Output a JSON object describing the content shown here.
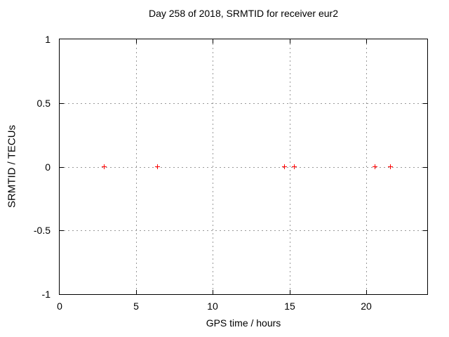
{
  "chart_data": {
    "type": "scatter",
    "title": "Day 258 of 2018, SRMTID for receiver eur2",
    "xlabel": "GPS time / hours",
    "ylabel": "SRMTID / TECUs",
    "xlim": [
      0,
      24
    ],
    "ylim": [
      -1,
      1
    ],
    "xticks": [
      0,
      5,
      10,
      15,
      20
    ],
    "xtick_labels": [
      "0",
      "5",
      "10",
      "15",
      "20"
    ],
    "yticks": [
      1,
      0.5,
      0,
      -0.5,
      -1
    ],
    "ytick_labels": [
      "1",
      "0.5",
      "0",
      "-0.5",
      "-1"
    ],
    "grid": true,
    "grid_x": [
      5,
      10,
      15,
      20
    ],
    "grid_y": [
      0.5,
      0,
      -0.5
    ],
    "legend": "none",
    "series": [
      {
        "name": "SRMTID",
        "marker": "plus",
        "color": "#ff0000",
        "points": [
          [
            2.9,
            0
          ],
          [
            6.4,
            0
          ],
          [
            14.7,
            0
          ],
          [
            15.3,
            0
          ],
          [
            20.6,
            0
          ],
          [
            21.6,
            0
          ]
        ]
      }
    ],
    "colors": {
      "background": "#ffffff",
      "border": "#000000",
      "text": "#000000",
      "grid": "#999999",
      "marker": "#ff0000"
    }
  }
}
